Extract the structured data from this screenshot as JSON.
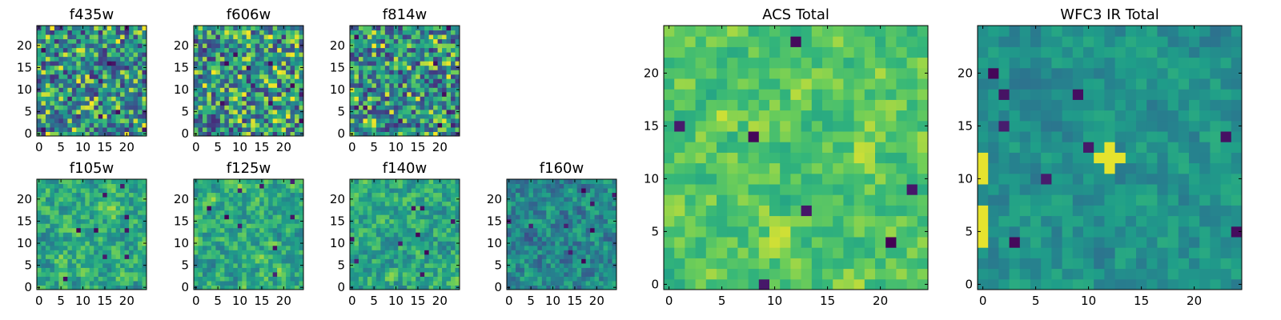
{
  "chart_data": [
    {
      "type": "heatmap",
      "title": "f435w",
      "grid_size": 25,
      "xlim": [
        -0.5,
        24.5
      ],
      "ylim": [
        -0.5,
        24.5
      ],
      "xticks": [
        0,
        5,
        10,
        15,
        20
      ],
      "yticks": [
        0,
        5,
        10,
        15,
        20
      ],
      "colormap": "viridis",
      "noise": "fine",
      "hot_spots": []
    },
    {
      "type": "heatmap",
      "title": "f606w",
      "grid_size": 25,
      "xlim": [
        -0.5,
        24.5
      ],
      "ylim": [
        -0.5,
        24.5
      ],
      "xticks": [
        0,
        5,
        10,
        15,
        20
      ],
      "yticks": [
        0,
        5,
        10,
        15,
        20
      ],
      "colormap": "viridis",
      "noise": "fine",
      "hot_spots": []
    },
    {
      "type": "heatmap",
      "title": "f814w",
      "grid_size": 25,
      "xlim": [
        -0.5,
        24.5
      ],
      "ylim": [
        -0.5,
        24.5
      ],
      "xticks": [
        0,
        5,
        10,
        15,
        20
      ],
      "yticks": [
        0,
        5,
        10,
        15,
        20
      ],
      "colormap": "viridis",
      "noise": "fine",
      "hot_spots": []
    },
    {
      "type": "heatmap",
      "title": "f105w",
      "grid_size": 25,
      "xlim": [
        -0.5,
        24.5
      ],
      "ylim": [
        -0.5,
        24.5
      ],
      "xticks": [
        0,
        5,
        10,
        15,
        20
      ],
      "yticks": [
        0,
        5,
        10,
        15,
        20
      ],
      "colormap": "viridis",
      "noise": "smooth",
      "hot_spots": []
    },
    {
      "type": "heatmap",
      "title": "f125w",
      "grid_size": 25,
      "xlim": [
        -0.5,
        24.5
      ],
      "ylim": [
        -0.5,
        24.5
      ],
      "xticks": [
        0,
        5,
        10,
        15,
        20
      ],
      "yticks": [
        0,
        5,
        10,
        15,
        20
      ],
      "colormap": "viridis",
      "noise": "smooth",
      "hot_spots": []
    },
    {
      "type": "heatmap",
      "title": "f140w",
      "grid_size": 25,
      "xlim": [
        -0.5,
        24.5
      ],
      "ylim": [
        -0.5,
        24.5
      ],
      "xticks": [
        0,
        5,
        10,
        15,
        20
      ],
      "yticks": [
        0,
        5,
        10,
        15,
        20
      ],
      "colormap": "viridis",
      "noise": "smooth",
      "hot_spots": []
    },
    {
      "type": "heatmap",
      "title": "f160w",
      "grid_size": 25,
      "xlim": [
        -0.5,
        24.5
      ],
      "ylim": [
        -0.5,
        24.5
      ],
      "xticks": [
        0,
        5,
        10,
        15,
        20
      ],
      "yticks": [
        0,
        5,
        10,
        15,
        20
      ],
      "colormap": "viridis",
      "noise": "smooth_dark",
      "hot_spots": []
    },
    {
      "type": "heatmap",
      "title": "ACS Total",
      "grid_size": 25,
      "xlim": [
        -0.5,
        24.5
      ],
      "ylim": [
        -0.5,
        24.5
      ],
      "xticks": [
        0,
        5,
        10,
        15,
        20
      ],
      "yticks": [
        0,
        5,
        10,
        15,
        20
      ],
      "colormap": "viridis",
      "noise": "bright",
      "hot_spots": []
    },
    {
      "type": "heatmap",
      "title": "WFC3 IR Total",
      "grid_size": 25,
      "xlim": [
        -0.5,
        24.5
      ],
      "ylim": [
        -0.5,
        24.5
      ],
      "xticks": [
        0,
        5,
        10,
        15,
        20
      ],
      "yticks": [
        0,
        5,
        10,
        15,
        20
      ],
      "colormap": "viridis",
      "noise": "mid",
      "hot_spots": [
        [
          12,
          12
        ],
        [
          11,
          12
        ],
        [
          13,
          12
        ],
        [
          12,
          11
        ],
        [
          12,
          13
        ],
        [
          0,
          12
        ],
        [
          0,
          11
        ],
        [
          0,
          10
        ],
        [
          0,
          7
        ],
        [
          0,
          6
        ],
        [
          0,
          5
        ],
        [
          0,
          4
        ]
      ]
    }
  ],
  "colors": {
    "low": "#440154",
    "mid": "#21918c",
    "high": "#fde725"
  }
}
